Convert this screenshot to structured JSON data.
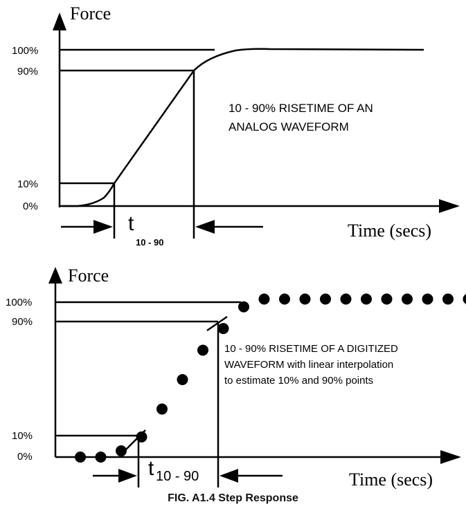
{
  "caption": "FIG. A1.4 Step Response",
  "analog": {
    "y_axis_label": "Force",
    "x_axis_label": "Time (secs)",
    "ticks": {
      "p100": "100%",
      "p90": "90%",
      "p10": "10%",
      "p0": "0%"
    },
    "t_symbol": "t",
    "t_subscript": "10 - 90",
    "annotation_line1": "10 - 90% RISETIME OF AN",
    "annotation_line2": "ANALOG WAVEFORM"
  },
  "digital": {
    "y_axis_label": "Force",
    "x_axis_label": "Time (secs)",
    "ticks": {
      "p100": "100%",
      "p90": "90%",
      "p10": "10%",
      "p0": "0%"
    },
    "t_symbol": "t",
    "t_subscript": "10 - 90",
    "annotation_line1": "10 - 90% RISETIME OF A DIGITIZED",
    "annotation_line2": "WAVEFORM with linear interpolation",
    "annotation_line3": "to estimate 10% and 90% points",
    "samples": [
      0,
      0,
      0.04,
      0.13,
      0.31,
      0.5,
      0.69,
      0.83,
      0.97,
      1.02,
      1.02,
      1.02,
      1.02,
      1.02,
      1.02,
      1.02,
      1.02,
      1.02,
      1.02,
      1.02
    ]
  }
}
